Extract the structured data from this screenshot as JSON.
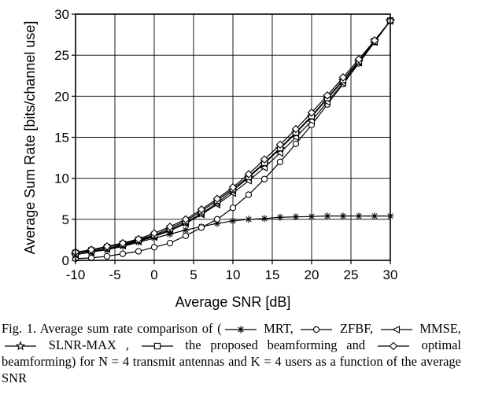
{
  "chart_data": {
    "type": "line",
    "xlabel": "Average SNR [dB]",
    "ylabel": "Average Sum Rate [bits/channel use]",
    "xlim": [
      -10,
      30
    ],
    "ylim": [
      0,
      30
    ],
    "xticks": [
      -10,
      -5,
      0,
      5,
      10,
      15,
      20,
      25,
      30
    ],
    "yticks": [
      0,
      5,
      10,
      15,
      20,
      25,
      30
    ],
    "grid": true,
    "x": [
      -10,
      -8,
      -6,
      -4,
      -2,
      0,
      2,
      4,
      6,
      8,
      10,
      12,
      14,
      16,
      18,
      20,
      22,
      24,
      26,
      28,
      30
    ],
    "series": [
      {
        "name": "MRT",
        "marker": "asterisk",
        "values": [
          0.7,
          1.0,
          1.3,
          1.7,
          2.2,
          2.7,
          3.2,
          3.7,
          4.1,
          4.5,
          4.8,
          5.0,
          5.1,
          5.25,
          5.3,
          5.35,
          5.4,
          5.4,
          5.4,
          5.4,
          5.4
        ]
      },
      {
        "name": "ZFBF",
        "marker": "circle",
        "values": [
          0.2,
          0.3,
          0.5,
          0.8,
          1.1,
          1.6,
          2.1,
          3.0,
          4.0,
          5.0,
          6.4,
          8.0,
          9.9,
          12.0,
          14.2,
          16.5,
          19.0,
          21.5,
          24.0,
          26.6,
          29.2
        ]
      },
      {
        "name": "MMSE",
        "marker": "triangle-left",
        "values": [
          0.7,
          1.0,
          1.4,
          1.8,
          2.3,
          2.9,
          3.6,
          4.5,
          5.6,
          6.8,
          8.2,
          9.7,
          11.3,
          13.1,
          15.0,
          17.0,
          19.3,
          21.6,
          24.1,
          26.6,
          29.2
        ]
      },
      {
        "name": "SLNR-MAX",
        "marker": "star",
        "values": [
          0.7,
          1.1,
          1.4,
          1.9,
          2.4,
          3.0,
          3.7,
          4.6,
          5.7,
          7.0,
          8.5,
          10.1,
          11.8,
          13.6,
          15.5,
          17.5,
          19.7,
          21.9,
          24.2,
          26.7,
          29.2
        ]
      },
      {
        "name": "the proposed beamforming",
        "marker": "square",
        "values": [
          0.9,
          1.2,
          1.6,
          2.0,
          2.5,
          3.1,
          3.9,
          4.8,
          6.0,
          7.3,
          8.7,
          10.2,
          11.9,
          13.7,
          15.6,
          17.6,
          19.8,
          22.0,
          24.3,
          26.7,
          29.2
        ]
      },
      {
        "name": "optimal beamforming",
        "marker": "diamond",
        "values": [
          1.0,
          1.3,
          1.7,
          2.1,
          2.6,
          3.3,
          4.1,
          5.0,
          6.2,
          7.5,
          8.9,
          10.5,
          12.3,
          14.1,
          16.0,
          18.0,
          20.1,
          22.3,
          24.5,
          26.8,
          29.2
        ]
      }
    ]
  },
  "caption": {
    "prefix": "Fig. 1. Average sum rate comparison of (",
    "mrt": "MRT,",
    "zfbf": "ZFBF,",
    "mmse": "MMSE,",
    "slnr": "SLNR-MAX ,",
    "proposed": "the proposed beamforming and",
    "optimal": "optimal beamforming) for N = 4 transmit antennas and K = 4 users as a function of the average SNR"
  }
}
